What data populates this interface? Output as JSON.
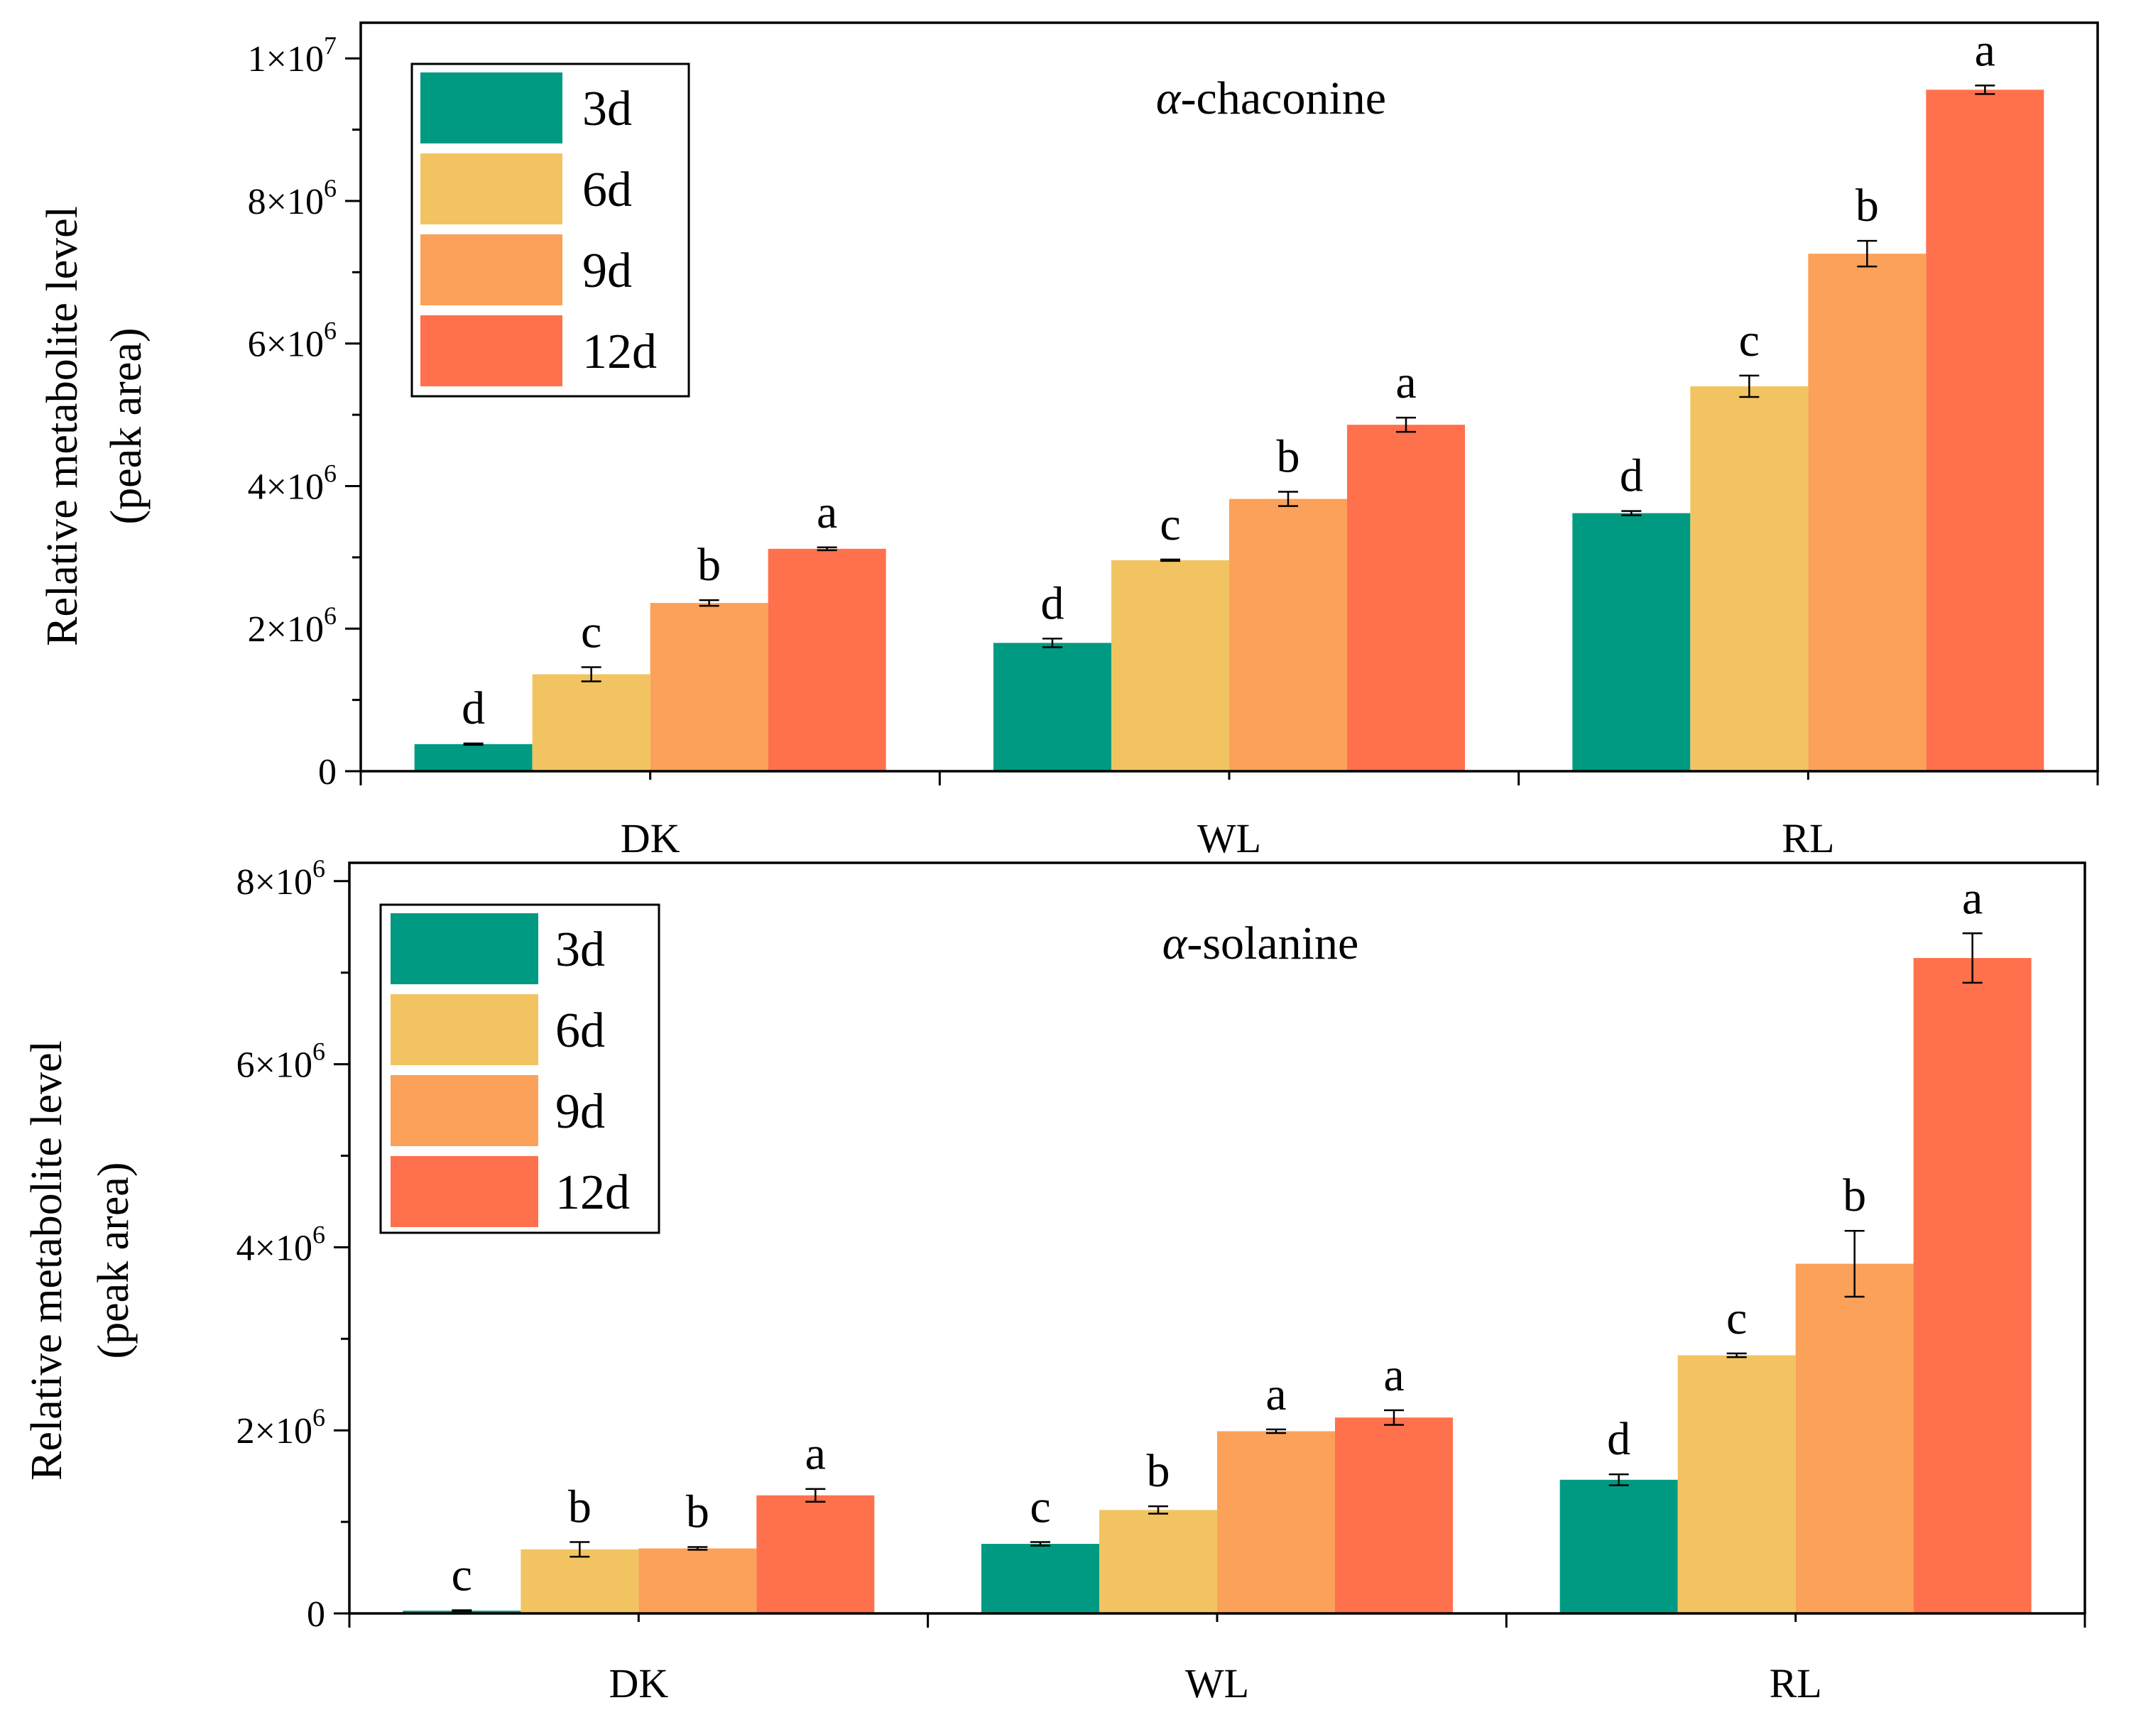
{
  "colors": {
    "3d": "#009a82",
    "6d": "#f2c461",
    "9d": "#fba159",
    "12d": "#ff704d"
  },
  "chart_data": [
    {
      "type": "bar",
      "title_prefix": "α",
      "title_suffix": "-chaconine",
      "ylabel_line1": "Relative metabolite level",
      "ylabel_line2": "(peak area)",
      "categories": [
        "DK",
        "WL",
        "RL"
      ],
      "ylim": [
        0,
        10500000
      ],
      "yticks": [
        {
          "value": 0,
          "base": "0",
          "exp": ""
        },
        {
          "value": 2000000,
          "base": "2×10",
          "exp": "6"
        },
        {
          "value": 4000000,
          "base": "4×10",
          "exp": "6"
        },
        {
          "value": 6000000,
          "base": "6×10",
          "exp": "6"
        },
        {
          "value": 8000000,
          "base": "8×10",
          "exp": "6"
        },
        {
          "value": 10000000,
          "base": "1×10",
          "exp": "7"
        }
      ],
      "legend": [
        "3d",
        "6d",
        "9d",
        "12d"
      ],
      "series": [
        {
          "name": "3d",
          "values": [
            380000,
            1800000,
            3620000
          ],
          "errors": [
            10000,
            60000,
            30000
          ],
          "letters": [
            "d",
            "d",
            "d"
          ]
        },
        {
          "name": "6d",
          "values": [
            1360000,
            2960000,
            5400000
          ],
          "errors": [
            100000,
            10000,
            150000
          ],
          "letters": [
            "c",
            "c",
            "c"
          ]
        },
        {
          "name": "9d",
          "values": [
            2360000,
            3820000,
            7260000
          ],
          "errors": [
            40000,
            100000,
            180000
          ],
          "letters": [
            "b",
            "b",
            "b"
          ]
        },
        {
          "name": "12d",
          "values": [
            3120000,
            4860000,
            9560000
          ],
          "errors": [
            20000,
            100000,
            60000
          ],
          "letters": [
            "a",
            "a",
            "a"
          ]
        }
      ]
    },
    {
      "type": "bar",
      "title_prefix": "α",
      "title_suffix": "-solanine",
      "ylabel_line1": "Relative metabolite level",
      "ylabel_line2": "(peak area)",
      "categories": [
        "DK",
        "WL",
        "RL"
      ],
      "ylim": [
        0,
        8200000
      ],
      "yticks": [
        {
          "value": 0,
          "base": "0",
          "exp": ""
        },
        {
          "value": 2000000,
          "base": "2×10",
          "exp": "6"
        },
        {
          "value": 4000000,
          "base": "4×10",
          "exp": "6"
        },
        {
          "value": 6000000,
          "base": "6×10",
          "exp": "6"
        },
        {
          "value": 8000000,
          "base": "8×10",
          "exp": "6"
        }
      ],
      "legend": [
        "3d",
        "6d",
        "9d",
        "12d"
      ],
      "series": [
        {
          "name": "3d",
          "values": [
            30000,
            760000,
            1460000
          ],
          "errors": [
            5000,
            20000,
            60000
          ],
          "letters": [
            "c",
            "c",
            "d"
          ]
        },
        {
          "name": "6d",
          "values": [
            700000,
            1130000,
            2820000
          ],
          "errors": [
            80000,
            40000,
            20000
          ],
          "letters": [
            "b",
            "b",
            "c"
          ]
        },
        {
          "name": "9d",
          "values": [
            710000,
            1990000,
            3820000
          ],
          "errors": [
            15000,
            20000,
            360000
          ],
          "letters": [
            "b",
            "a",
            "b"
          ]
        },
        {
          "name": "12d",
          "values": [
            1290000,
            2140000,
            7160000
          ],
          "errors": [
            70000,
            80000,
            270000
          ],
          "letters": [
            "a",
            "a",
            "a"
          ]
        }
      ]
    }
  ]
}
